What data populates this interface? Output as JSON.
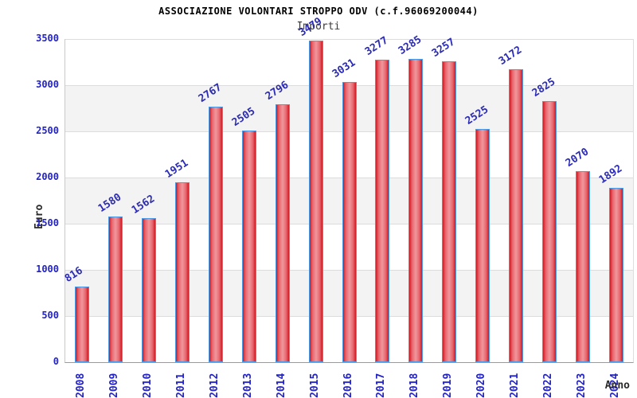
{
  "chart_data": {
    "type": "bar",
    "title": "ASSOCIAZIONE VOLONTARI STROPPO ODV (c.f.96069200044)",
    "subtitle": "Importi",
    "xlabel": "Anno",
    "ylabel": "Euro",
    "categories": [
      "2008",
      "2009",
      "2010",
      "2011",
      "2012",
      "2013",
      "2014",
      "2015",
      "2016",
      "2017",
      "2018",
      "2019",
      "2020",
      "2021",
      "2022",
      "2023",
      "2024"
    ],
    "values": [
      816,
      1580,
      1562,
      1951,
      2767,
      2505,
      2796,
      3479,
      3031,
      3277,
      3285,
      3257,
      2525,
      3172,
      2825,
      2070,
      1892
    ],
    "ylim": [
      0,
      3500
    ],
    "yticks": [
      0,
      500,
      1000,
      1500,
      2000,
      2500,
      3000,
      3500
    ],
    "grid": "alternating horizontal bands every 500, light gridlines",
    "legend": "none",
    "colors": {
      "bar_fill_edge": "#ce1a22",
      "bar_fill_center": "#f0989d",
      "bar_border": "#4d9be6",
      "tick_text": "#2323c3",
      "value_label_text": "#2b2bb5",
      "band_gray": "#f3f3f3",
      "band_white": "#ffffff",
      "title_text": "#000000",
      "subtitle_text": "#3a3a3a"
    }
  }
}
